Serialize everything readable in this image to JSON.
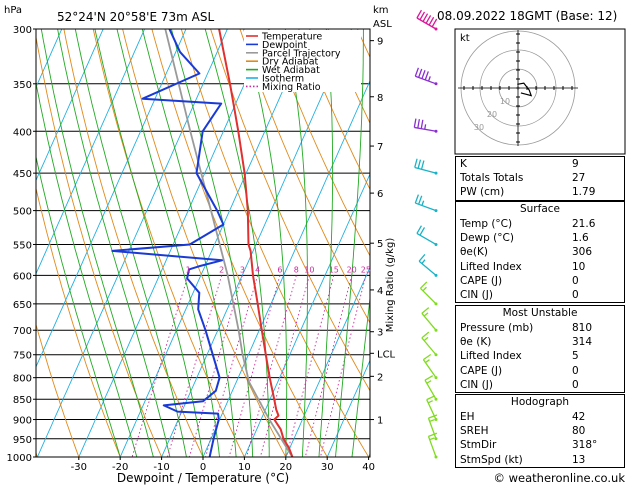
{
  "header": {
    "location": "52°24'N  20°58'E  73m  ASL",
    "datetime": "08.09.2022  18GMT  (Base: 12)",
    "hpa_label": "hPa",
    "km_label": "km",
    "asl_label": "ASL"
  },
  "legend": [
    {
      "label": "Temperature",
      "color": "#e03030",
      "style": "solid"
    },
    {
      "label": "Dewpoint",
      "color": "#1a3ad6",
      "style": "solid"
    },
    {
      "label": "Parcel Trajectory",
      "color": "#9a9a9a",
      "style": "solid"
    },
    {
      "label": "Dry Adiabat",
      "color": "#e08a1a",
      "style": "solid"
    },
    {
      "label": "Wet Adiabat",
      "color": "#22aa22",
      "style": "solid"
    },
    {
      "label": "Isotherm",
      "color": "#20b0e0",
      "style": "solid"
    },
    {
      "label": "Mixing Ratio",
      "color": "#cc2aa0",
      "style": "dotted"
    }
  ],
  "chart_data": {
    "type": "skew-t",
    "xlabel": "Dewpoint / Temperature (°C)",
    "ylabel": "hPa",
    "right_axis_label": "Mixing Ratio (g/kg)",
    "xlim": [
      -35,
      40
    ],
    "ylim": [
      1000,
      300
    ],
    "pressure_ticks": [
      300,
      350,
      400,
      450,
      500,
      550,
      600,
      650,
      700,
      750,
      800,
      850,
      900,
      950,
      1000
    ],
    "temp_ticks": [
      -30,
      -20,
      -10,
      0,
      10,
      20,
      30,
      40
    ],
    "km_ticks": [
      {
        "label": "9",
        "p": 310
      },
      {
        "label": "8",
        "p": 363
      },
      {
        "label": "7",
        "p": 417
      },
      {
        "label": "6",
        "p": 476
      },
      {
        "label": "5",
        "p": 548
      },
      {
        "label": "4",
        "p": 625
      },
      {
        "label": "3",
        "p": 703
      },
      {
        "label": "LCL",
        "p": 747
      },
      {
        "label": "2",
        "p": 797
      },
      {
        "label": "1",
        "p": 900
      }
    ],
    "mixing_ratio_labels": [
      "1",
      "2",
      "3",
      "4",
      "6",
      "8",
      "10",
      "15",
      "20",
      "25"
    ],
    "mixing_ratio_values": [
      1,
      2,
      3,
      4,
      6,
      8,
      10,
      15,
      20,
      25
    ],
    "temperature": [
      {
        "p": 1000,
        "t": 21.6
      },
      {
        "p": 975,
        "t": 19.8
      },
      {
        "p": 950,
        "t": 17.5
      },
      {
        "p": 925,
        "t": 15.8
      },
      {
        "p": 900,
        "t": 13.2
      },
      {
        "p": 890,
        "t": 13.8
      },
      {
        "p": 875,
        "t": 12.6
      },
      {
        "p": 850,
        "t": 11.0
      },
      {
        "p": 800,
        "t": 7.6
      },
      {
        "p": 750,
        "t": 4.2
      },
      {
        "p": 700,
        "t": 0.6
      },
      {
        "p": 650,
        "t": -3.2
      },
      {
        "p": 600,
        "t": -7.4
      },
      {
        "p": 560,
        "t": -10.6
      },
      {
        "p": 550,
        "t": -11.8
      },
      {
        "p": 500,
        "t": -15.6
      },
      {
        "p": 450,
        "t": -20.4
      },
      {
        "p": 400,
        "t": -26.4
      },
      {
        "p": 350,
        "t": -33.5
      },
      {
        "p": 300,
        "t": -42.0
      }
    ],
    "dewpoint": [
      {
        "p": 1000,
        "t": 1.6
      },
      {
        "p": 950,
        "t": 0.6
      },
      {
        "p": 900,
        "t": -0.2
      },
      {
        "p": 885,
        "t": -1.0
      },
      {
        "p": 880,
        "t": -11.0
      },
      {
        "p": 865,
        "t": -15.0
      },
      {
        "p": 855,
        "t": -6.0
      },
      {
        "p": 830,
        "t": -4.0
      },
      {
        "p": 800,
        "t": -4.5
      },
      {
        "p": 700,
        "t": -13.0
      },
      {
        "p": 660,
        "t": -17.0
      },
      {
        "p": 630,
        "t": -18.5
      },
      {
        "p": 605,
        "t": -23.0
      },
      {
        "p": 590,
        "t": -23.5
      },
      {
        "p": 585,
        "t": -21.5
      },
      {
        "p": 575,
        "t": -16.5
      },
      {
        "p": 560,
        "t": -44.0
      },
      {
        "p": 550,
        "t": -26.0
      },
      {
        "p": 520,
        "t": -20.0
      },
      {
        "p": 500,
        "t": -23.0
      },
      {
        "p": 450,
        "t": -32.0
      },
      {
        "p": 400,
        "t": -35.0
      },
      {
        "p": 370,
        "t": -33.5
      },
      {
        "p": 365,
        "t": -53.0
      },
      {
        "p": 340,
        "t": -42.0
      },
      {
        "p": 320,
        "t": -49.0
      },
      {
        "p": 300,
        "t": -54.0
      }
    ],
    "parcel": [
      {
        "p": 1000,
        "t": 21.6
      },
      {
        "p": 900,
        "t": 12.0
      },
      {
        "p": 810,
        "t": 3.1
      },
      {
        "p": 750,
        "t": -1.4
      },
      {
        "p": 700,
        "t": -5.0
      },
      {
        "p": 600,
        "t": -13.5
      },
      {
        "p": 500,
        "t": -24.5
      },
      {
        "p": 400,
        "t": -38.0
      },
      {
        "p": 300,
        "t": -55.0
      }
    ],
    "wind_barbs": [
      {
        "p": 300,
        "speed_kt": 60,
        "dir_deg": 300
      },
      {
        "p": 350,
        "speed_kt": 45,
        "dir_deg": 290
      },
      {
        "p": 400,
        "speed_kt": 35,
        "dir_deg": 280
      },
      {
        "p": 450,
        "speed_kt": 30,
        "dir_deg": 285
      },
      {
        "p": 500,
        "speed_kt": 25,
        "dir_deg": 290
      },
      {
        "p": 550,
        "speed_kt": 20,
        "dir_deg": 300
      },
      {
        "p": 600,
        "speed_kt": 15,
        "dir_deg": 310
      },
      {
        "p": 650,
        "speed_kt": 15,
        "dir_deg": 315
      },
      {
        "p": 700,
        "speed_kt": 15,
        "dir_deg": 320
      },
      {
        "p": 750,
        "speed_kt": 15,
        "dir_deg": 320
      },
      {
        "p": 800,
        "speed_kt": 15,
        "dir_deg": 325
      },
      {
        "p": 850,
        "speed_kt": 15,
        "dir_deg": 330
      },
      {
        "p": 900,
        "speed_kt": 15,
        "dir_deg": 335
      },
      {
        "p": 950,
        "speed_kt": 15,
        "dir_deg": 340
      },
      {
        "p": 1000,
        "speed_kt": 15,
        "dir_deg": 340
      }
    ]
  },
  "hodograph": {
    "unit_label": "kt",
    "ring_labels": [
      "10",
      "20",
      "30"
    ],
    "trace": [
      {
        "dir_deg": 170,
        "kt": 2
      },
      {
        "dir_deg": 230,
        "kt": 4
      },
      {
        "dir_deg": 280,
        "kt": 6
      },
      {
        "dir_deg": 300,
        "kt": 8
      },
      {
        "dir_deg": 310,
        "kt": 5
      },
      {
        "dir_deg": 330,
        "kt": 3
      }
    ]
  },
  "indices": {
    "rows": [
      {
        "label": "K",
        "value": "9"
      },
      {
        "label": "Totals Totals",
        "value": "27"
      },
      {
        "label": "PW (cm)",
        "value": "1.79"
      }
    ]
  },
  "surface": {
    "title": "Surface",
    "rows": [
      {
        "label": "Temp (°C)",
        "value": "21.6"
      },
      {
        "label": "Dewp (°C)",
        "value": "1.6"
      },
      {
        "label": "θe(K)",
        "value": "306"
      },
      {
        "label": "Lifted Index",
        "value": "10"
      },
      {
        "label": "CAPE (J)",
        "value": "0"
      },
      {
        "label": "CIN (J)",
        "value": "0"
      }
    ]
  },
  "most_unstable": {
    "title": "Most Unstable",
    "rows": [
      {
        "label": "Pressure (mb)",
        "value": "810"
      },
      {
        "label": "θe (K)",
        "value": "314"
      },
      {
        "label": "Lifted Index",
        "value": "5"
      },
      {
        "label": "CAPE (J)",
        "value": "0"
      },
      {
        "label": "CIN (J)",
        "value": "0"
      }
    ]
  },
  "hodograph_table": {
    "title": "Hodograph",
    "rows": [
      {
        "label": "EH",
        "value": "42"
      },
      {
        "label": "SREH",
        "value": "80"
      },
      {
        "label": "StmDir",
        "value": "318°"
      },
      {
        "label": "StmSpd (kt)",
        "value": "13"
      }
    ]
  },
  "footer": {
    "copyright": "© weatheronline.co.uk"
  }
}
